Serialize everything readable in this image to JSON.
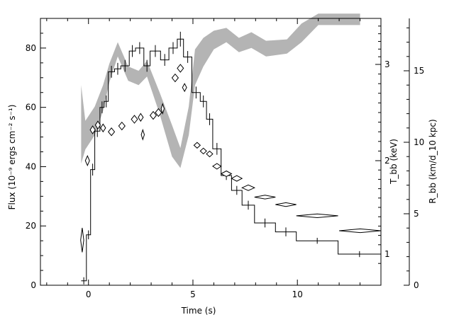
{
  "chart_data": {
    "type": "line",
    "xlabel": "Time (s)",
    "ylabel_left": "Flux (10⁻⁹ ergs cm⁻² s⁻¹)",
    "ylabel_right_inner": "T_bb (keV)",
    "ylabel_right_outer": "R_bb (km/d_10 kpc)",
    "x_ticks": [
      0,
      5,
      10
    ],
    "xlim": [
      -2.3,
      14
    ],
    "ylim_left": [
      0,
      90
    ],
    "y_ticks_left": [
      0,
      20,
      40,
      60,
      80
    ],
    "y_ticks_right_inner": [
      1,
      2,
      3
    ],
    "y_ticks_right_outer": [
      0,
      5,
      10,
      15
    ],
    "legend": "none",
    "grid": false,
    "series": [
      {
        "style": "histogram step with error bars",
        "axis": "left",
        "bins": [
          {
            "x0": -0.35,
            "x1": -0.1,
            "y": 1.5,
            "err": 1.2
          },
          {
            "x0": -0.1,
            "x1": 0.1,
            "y": 17,
            "err": 1.5
          },
          {
            "x0": 0.1,
            "x1": 0.3,
            "y": 39,
            "err": 2
          },
          {
            "x0": 0.3,
            "x1": 0.55,
            "y": 52,
            "err": 2
          },
          {
            "x0": 0.55,
            "x1": 0.75,
            "y": 60,
            "err": 2
          },
          {
            "x0": 0.75,
            "x1": 0.95,
            "y": 62,
            "err": 2
          },
          {
            "x0": 0.95,
            "x1": 1.25,
            "y": 72,
            "err": 2
          },
          {
            "x0": 1.25,
            "x1": 1.55,
            "y": 73,
            "err": 2
          },
          {
            "x0": 1.55,
            "x1": 1.95,
            "y": 74,
            "err": 2
          },
          {
            "x0": 1.95,
            "x1": 2.25,
            "y": 79,
            "err": 2
          },
          {
            "x0": 2.25,
            "x1": 2.65,
            "y": 80,
            "err": 2
          },
          {
            "x0": 2.65,
            "x1": 2.95,
            "y": 74,
            "err": 2
          },
          {
            "x0": 2.95,
            "x1": 3.45,
            "y": 79,
            "err": 2
          },
          {
            "x0": 3.45,
            "x1": 3.85,
            "y": 76,
            "err": 2
          },
          {
            "x0": 3.85,
            "x1": 4.25,
            "y": 80,
            "err": 2
          },
          {
            "x0": 4.25,
            "x1": 4.55,
            "y": 83,
            "err": 2.5
          },
          {
            "x0": 4.55,
            "x1": 4.95,
            "y": 77,
            "err": 2
          },
          {
            "x0": 4.95,
            "x1": 5.35,
            "y": 65,
            "err": 2
          },
          {
            "x0": 5.35,
            "x1": 5.65,
            "y": 62,
            "err": 2
          },
          {
            "x0": 5.65,
            "x1": 5.95,
            "y": 56,
            "err": 2
          },
          {
            "x0": 5.95,
            "x1": 6.35,
            "y": 46,
            "err": 2
          },
          {
            "x0": 6.35,
            "x1": 6.85,
            "y": 37,
            "err": 1.5
          },
          {
            "x0": 6.85,
            "x1": 7.35,
            "y": 32,
            "err": 1.5
          },
          {
            "x0": 7.35,
            "x1": 7.95,
            "y": 27,
            "err": 1.5
          },
          {
            "x0": 7.95,
            "x1": 8.95,
            "y": 21,
            "err": 1.5
          },
          {
            "x0": 8.95,
            "x1": 9.95,
            "y": 18,
            "err": 1.5
          },
          {
            "x0": 9.95,
            "x1": 11.95,
            "y": 15,
            "err": 1
          },
          {
            "x0": 11.95,
            "x1": 14,
            "y": 10.5,
            "err": 1
          }
        ]
      },
      {
        "style": "diamond markers with x and y error",
        "axis": "right_inner",
        "points": [
          {
            "x": -0.3,
            "y": 1.15,
            "xerr": 0.07,
            "yerr": 0.13
          },
          {
            "x": -0.05,
            "y": 2.0,
            "xerr": 0.1,
            "yerr": 0.05
          },
          {
            "x": 0.2,
            "y": 2.32,
            "xerr": 0.12,
            "yerr": 0.04
          },
          {
            "x": 0.45,
            "y": 2.37,
            "xerr": 0.12,
            "yerr": 0.04
          },
          {
            "x": 0.7,
            "y": 2.34,
            "xerr": 0.12,
            "yerr": 0.04
          },
          {
            "x": 1.1,
            "y": 2.3,
            "xerr": 0.15,
            "yerr": 0.04
          },
          {
            "x": 1.6,
            "y": 2.36,
            "xerr": 0.15,
            "yerr": 0.04
          },
          {
            "x": 2.2,
            "y": 2.43,
            "xerr": 0.15,
            "yerr": 0.04
          },
          {
            "x": 2.5,
            "y": 2.45,
            "xerr": 0.12,
            "yerr": 0.04
          },
          {
            "x": 2.6,
            "y": 2.27,
            "xerr": 0.02,
            "yerr": 0.05
          },
          {
            "x": 3.1,
            "y": 2.47,
            "xerr": 0.15,
            "yerr": 0.04
          },
          {
            "x": 3.35,
            "y": 2.5,
            "xerr": 0.15,
            "yerr": 0.04
          },
          {
            "x": 3.55,
            "y": 2.54,
            "xerr": 0.02,
            "yerr": 0.05
          },
          {
            "x": 4.15,
            "y": 2.86,
            "xerr": 0.15,
            "yerr": 0.04
          },
          {
            "x": 4.4,
            "y": 2.96,
            "xerr": 0.15,
            "yerr": 0.04
          },
          {
            "x": 4.6,
            "y": 2.76,
            "xerr": 0.1,
            "yerr": 0.04
          },
          {
            "x": 5.2,
            "y": 2.16,
            "xerr": 0.15,
            "yerr": 0.03
          },
          {
            "x": 5.5,
            "y": 2.1,
            "xerr": 0.15,
            "yerr": 0.03
          },
          {
            "x": 5.8,
            "y": 2.07,
            "xerr": 0.15,
            "yerr": 0.03
          },
          {
            "x": 6.15,
            "y": 1.94,
            "xerr": 0.2,
            "yerr": 0.03
          },
          {
            "x": 6.6,
            "y": 1.86,
            "xerr": 0.25,
            "yerr": 0.03
          },
          {
            "x": 7.1,
            "y": 1.81,
            "xerr": 0.25,
            "yerr": 0.03
          },
          {
            "x": 7.65,
            "y": 1.71,
            "xerr": 0.3,
            "yerr": 0.03
          },
          {
            "x": 8.45,
            "y": 1.61,
            "xerr": 0.5,
            "yerr": 0.02
          },
          {
            "x": 9.45,
            "y": 1.53,
            "xerr": 0.5,
            "yerr": 0.02
          },
          {
            "x": 10.95,
            "y": 1.41,
            "xerr": 1.0,
            "yerr": 0.02
          },
          {
            "x": 13.0,
            "y": 1.25,
            "xerr": 1.0,
            "yerr": 0.02
          }
        ]
      },
      {
        "style": "grey filled band",
        "axis": "right_outer",
        "band": [
          {
            "x": -0.35,
            "lo": 8.5,
            "hi": 14.0
          },
          {
            "x": -0.15,
            "lo": 9.5,
            "hi": 11.5
          },
          {
            "x": 0.3,
            "lo": 10.5,
            "hi": 12.5
          },
          {
            "x": 0.7,
            "lo": 12.2,
            "hi": 14.0
          },
          {
            "x": 1.0,
            "lo": 14.2,
            "hi": 15.5
          },
          {
            "x": 1.4,
            "lo": 16.0,
            "hi": 17.0
          },
          {
            "x": 1.9,
            "lo": 14.3,
            "hi": 15.3
          },
          {
            "x": 2.4,
            "lo": 14.0,
            "hi": 15.0
          },
          {
            "x": 2.8,
            "lo": 14.6,
            "hi": 15.7
          },
          {
            "x": 3.4,
            "lo": 12.0,
            "hi": 13.5
          },
          {
            "x": 4.0,
            "lo": 9.0,
            "hi": 11.2
          },
          {
            "x": 4.4,
            "lo": 8.2,
            "hi": 9.6
          },
          {
            "x": 4.8,
            "lo": 10.5,
            "hi": 12.5
          },
          {
            "x": 5.1,
            "lo": 14.0,
            "hi": 16.5
          },
          {
            "x": 5.5,
            "lo": 15.3,
            "hi": 17.3
          },
          {
            "x": 6.0,
            "lo": 16.5,
            "hi": 17.8
          },
          {
            "x": 6.6,
            "lo": 17.0,
            "hi": 18.0
          },
          {
            "x": 7.2,
            "lo": 16.3,
            "hi": 17.3
          },
          {
            "x": 7.8,
            "lo": 16.6,
            "hi": 17.7
          },
          {
            "x": 8.5,
            "lo": 16.0,
            "hi": 17.1
          },
          {
            "x": 9.5,
            "lo": 16.2,
            "hi": 17.2
          },
          {
            "x": 10.2,
            "lo": 17.0,
            "hi": 18.3
          },
          {
            "x": 11.0,
            "lo": 18.2,
            "hi": 19.0
          },
          {
            "x": 13.0,
            "lo": 18.2,
            "hi": 19.0
          }
        ]
      }
    ]
  }
}
